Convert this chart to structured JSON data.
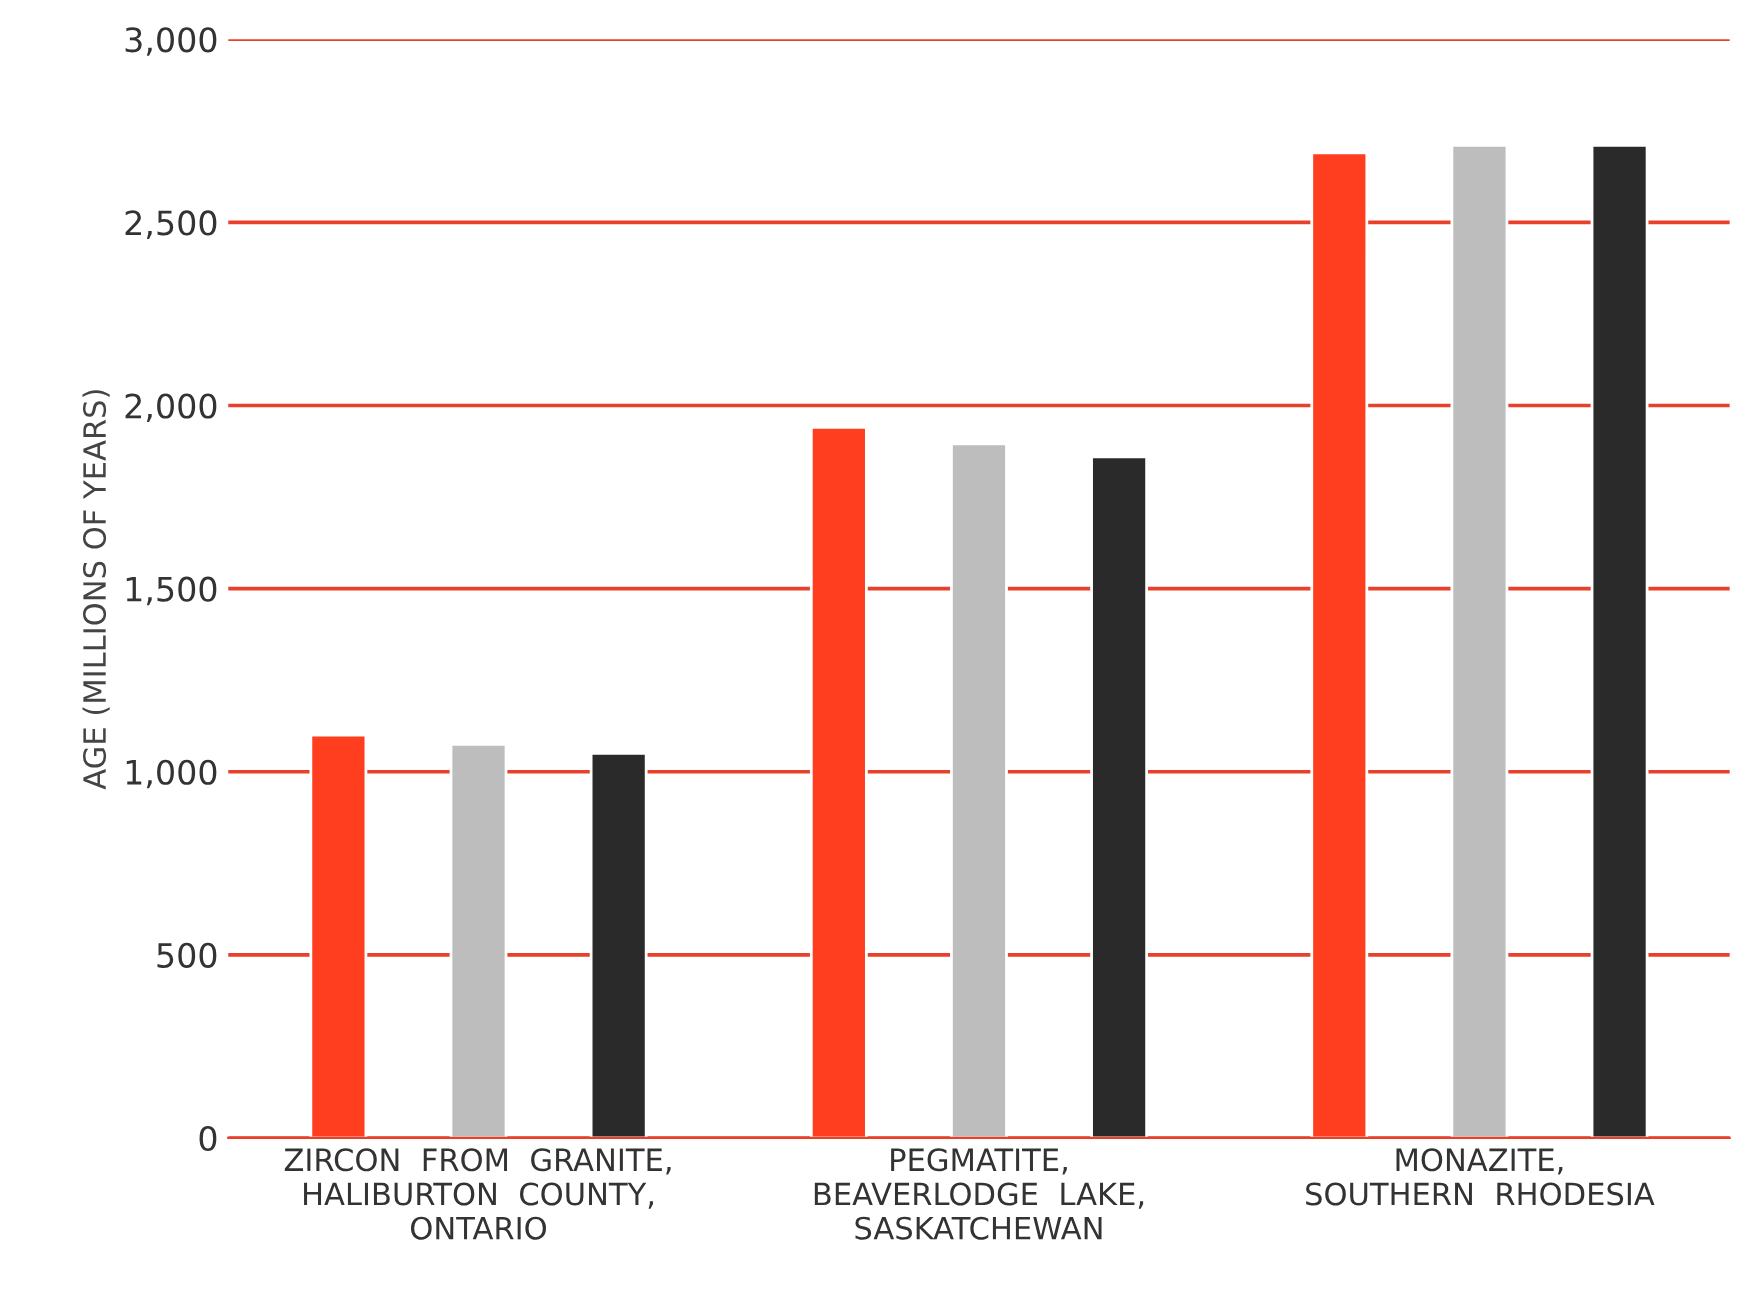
{
  "chart_data": {
    "type": "bar",
    "ylabel": "AGE (MILLIONS OF YEARS)",
    "categories": [
      "ZIRCON  FROM  GRANITE,\nHALIBURTON  COUNTY,\nONTARIO",
      "PEGMATITE,\nBEAVERLODGE  LAKE,\nSASKATCHEWAN",
      "MONAZITE,\nSOUTHERN  RHODESIA"
    ],
    "series": [
      {
        "color": "#ff3d1f",
        "values": [
          1100,
          1940,
          2690
        ]
      },
      {
        "color": "#bdbdbd",
        "values": [
          1075,
          1895,
          2710
        ]
      },
      {
        "color": "#2a2a2a",
        "values": [
          1050,
          1860,
          2710
        ]
      }
    ],
    "ylim": [
      0,
      3000
    ],
    "yticks": [
      {
        "value": 0,
        "label": "0"
      },
      {
        "value": 500,
        "label": "500"
      },
      {
        "value": 1000,
        "label": "1,000"
      },
      {
        "value": 1500,
        "label": "1,500"
      },
      {
        "value": 2000,
        "label": "2,000"
      },
      {
        "value": 2500,
        "label": "2,500"
      },
      {
        "value": 3000,
        "label": "3,000"
      }
    ],
    "grid": "y"
  }
}
